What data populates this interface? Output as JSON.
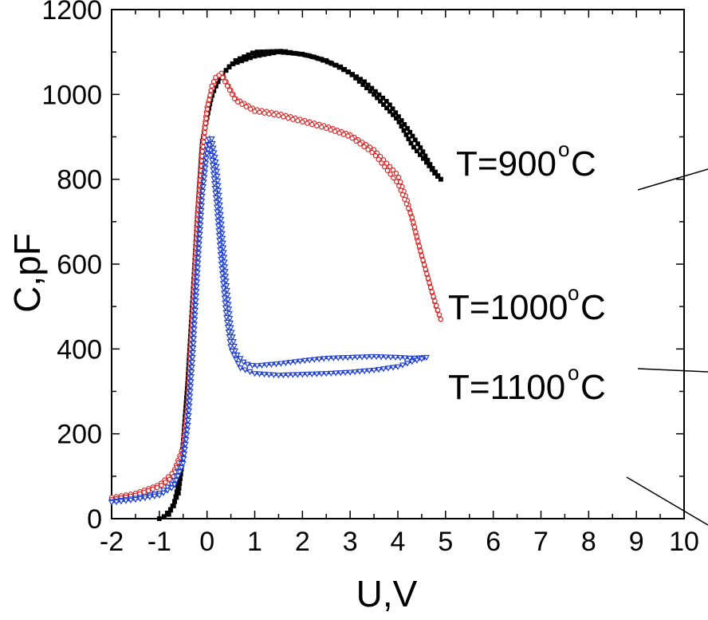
{
  "chart_data": {
    "type": "line",
    "xlabel": "U,V",
    "ylabel": "C,pF",
    "xlim": [
      -2,
      10
    ],
    "ylim": [
      0,
      1200
    ],
    "xticks": [
      -2,
      -1,
      0,
      1,
      2,
      3,
      4,
      5,
      6,
      7,
      8,
      9,
      10
    ],
    "yticks": [
      0,
      200,
      400,
      600,
      800,
      1000,
      1200
    ],
    "grid": false,
    "series": [
      {
        "color": "#000000",
        "marker": "square",
        "loops": [
          [
            [
              -1.0,
              0
            ],
            [
              -0.8,
              10
            ],
            [
              -0.6,
              60
            ],
            [
              -0.5,
              150
            ],
            [
              -0.4,
              280
            ],
            [
              -0.3,
              480
            ],
            [
              -0.2,
              680
            ],
            [
              -0.1,
              880
            ],
            [
              0.0,
              960
            ],
            [
              0.2,
              1030
            ],
            [
              0.5,
              1070
            ],
            [
              1.0,
              1090
            ],
            [
              1.5,
              1100
            ],
            [
              2.0,
              1095
            ],
            [
              2.5,
              1080
            ],
            [
              3.0,
              1050
            ],
            [
              3.5,
              1000
            ],
            [
              4.0,
              940
            ],
            [
              4.3,
              880
            ],
            [
              4.6,
              840
            ],
            [
              4.8,
              810
            ],
            [
              4.9,
              800
            ]
          ],
          [
            [
              4.9,
              800
            ],
            [
              4.7,
              830
            ],
            [
              4.5,
              870
            ],
            [
              4.2,
              920
            ],
            [
              3.8,
              980
            ],
            [
              3.3,
              1030
            ],
            [
              2.8,
              1065
            ],
            [
              2.2,
              1090
            ],
            [
              1.6,
              1102
            ],
            [
              1.0,
              1100
            ],
            [
              0.6,
              1080
            ],
            [
              0.3,
              1045
            ],
            [
              0.1,
              1000
            ],
            [
              -0.1,
              890
            ],
            [
              -0.2,
              720
            ],
            [
              -0.3,
              520
            ],
            [
              -0.4,
              330
            ],
            [
              -0.5,
              180
            ],
            [
              -0.6,
              80
            ],
            [
              -0.7,
              30
            ],
            [
              -0.9,
              5
            ]
          ]
        ]
      },
      {
        "color": "#d62828",
        "marker": "circle",
        "loops": [
          [
            [
              -2.0,
              50
            ],
            [
              -1.5,
              60
            ],
            [
              -1.0,
              80
            ],
            [
              -0.7,
              110
            ],
            [
              -0.5,
              170
            ],
            [
              -0.4,
              280
            ],
            [
              -0.3,
              500
            ],
            [
              -0.2,
              720
            ],
            [
              -0.1,
              880
            ],
            [
              0.0,
              970
            ],
            [
              0.1,
              1010
            ],
            [
              0.2,
              1040
            ],
            [
              0.3,
              1050
            ],
            [
              0.4,
              1030
            ],
            [
              0.6,
              990
            ],
            [
              1.0,
              965
            ],
            [
              1.5,
              955
            ],
            [
              2.0,
              940
            ],
            [
              2.5,
              925
            ],
            [
              3.0,
              905
            ],
            [
              3.5,
              870
            ],
            [
              4.0,
              810
            ],
            [
              4.2,
              750
            ],
            [
              4.4,
              660
            ],
            [
              4.6,
              580
            ],
            [
              4.8,
              500
            ],
            [
              4.9,
              470
            ]
          ],
          [
            [
              4.9,
              470
            ],
            [
              4.7,
              540
            ],
            [
              4.5,
              620
            ],
            [
              4.3,
              710
            ],
            [
              4.0,
              790
            ],
            [
              3.5,
              860
            ],
            [
              3.0,
              900
            ],
            [
              2.5,
              920
            ],
            [
              2.0,
              935
            ],
            [
              1.5,
              950
            ],
            [
              1.0,
              960
            ],
            [
              0.6,
              985
            ],
            [
              0.4,
              1025
            ],
            [
              0.3,
              1045
            ],
            [
              0.2,
              1045
            ],
            [
              0.1,
              1020
            ],
            [
              0.0,
              960
            ],
            [
              -0.1,
              860
            ],
            [
              -0.2,
              700
            ],
            [
              -0.3,
              480
            ],
            [
              -0.4,
              270
            ],
            [
              -0.5,
              160
            ],
            [
              -0.7,
              100
            ],
            [
              -1.0,
              75
            ],
            [
              -1.5,
              55
            ],
            [
              -2.0,
              45
            ]
          ]
        ]
      },
      {
        "color": "#1f3fcf",
        "marker": "triangle",
        "loops": [
          [
            [
              -2.0,
              40
            ],
            [
              -1.5,
              48
            ],
            [
              -1.0,
              60
            ],
            [
              -0.7,
              85
            ],
            [
              -0.5,
              140
            ],
            [
              -0.4,
              230
            ],
            [
              -0.3,
              400
            ],
            [
              -0.2,
              600
            ],
            [
              -0.1,
              770
            ],
            [
              0.0,
              870
            ],
            [
              0.05,
              900
            ],
            [
              0.1,
              895
            ],
            [
              0.2,
              830
            ],
            [
              0.3,
              700
            ],
            [
              0.4,
              560
            ],
            [
              0.5,
              450
            ],
            [
              0.6,
              390
            ],
            [
              0.8,
              365
            ],
            [
              1.0,
              360
            ],
            [
              1.5,
              365
            ],
            [
              2.0,
              372
            ],
            [
              2.5,
              378
            ],
            [
              3.0,
              380
            ],
            [
              3.5,
              382
            ],
            [
              4.0,
              380
            ],
            [
              4.3,
              378
            ],
            [
              4.6,
              380
            ]
          ],
          [
            [
              4.6,
              380
            ],
            [
              4.3,
              370
            ],
            [
              4.0,
              358
            ],
            [
              3.5,
              350
            ],
            [
              3.0,
              345
            ],
            [
              2.5,
              342
            ],
            [
              2.0,
              340
            ],
            [
              1.5,
              338
            ],
            [
              1.0,
              342
            ],
            [
              0.7,
              355
            ],
            [
              0.5,
              400
            ],
            [
              0.4,
              480
            ],
            [
              0.3,
              600
            ],
            [
              0.2,
              740
            ],
            [
              0.1,
              850
            ],
            [
              0.05,
              880
            ],
            [
              0.0,
              860
            ],
            [
              -0.1,
              760
            ],
            [
              -0.2,
              580
            ],
            [
              -0.3,
              380
            ],
            [
              -0.4,
              220
            ],
            [
              -0.5,
              130
            ],
            [
              -0.7,
              75
            ],
            [
              -1.0,
              55
            ],
            [
              -1.5,
              45
            ],
            [
              -2.0,
              38
            ]
          ]
        ]
      }
    ],
    "annotations": [
      {
        "label": "T=900",
        "sup": "o",
        "unit": "C"
      },
      {
        "label": "T=1000",
        "sup": "o",
        "unit": "C"
      },
      {
        "label": "T=1100",
        "sup": "o",
        "unit": "C"
      }
    ]
  }
}
